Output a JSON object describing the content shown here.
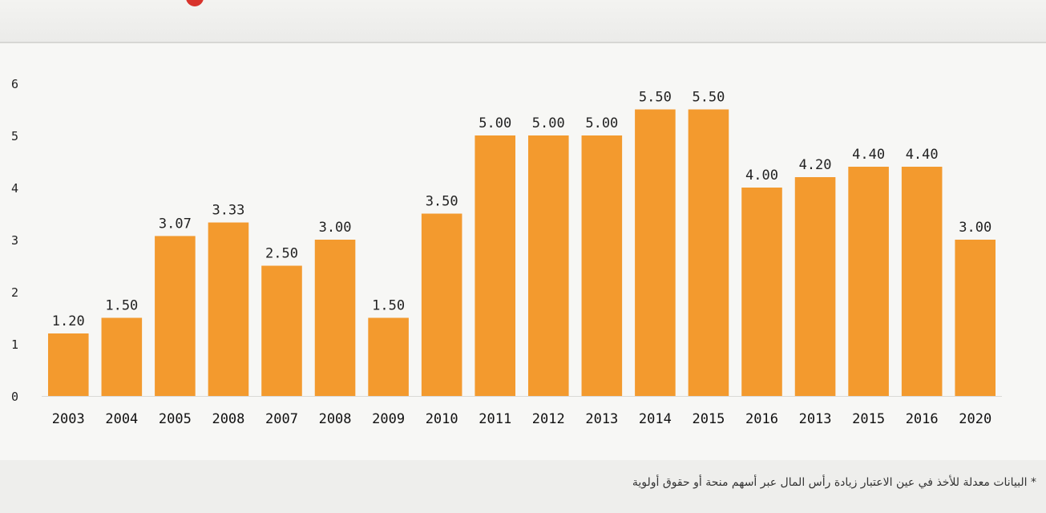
{
  "chart_data": {
    "type": "bar",
    "categories": [
      "2003",
      "2004",
      "2005",
      "2008",
      "2007",
      "2008",
      "2009",
      "2010",
      "2011",
      "2012",
      "2013",
      "2014",
      "2015",
      "2016",
      "2013",
      "2015",
      "2016",
      "2020"
    ],
    "values": [
      1.2,
      1.5,
      3.07,
      3.33,
      2.5,
      3.0,
      1.5,
      3.5,
      5.0,
      5.0,
      5.0,
      5.5,
      5.5,
      4.0,
      4.2,
      4.4,
      4.4,
      3.0
    ],
    "value_labels": [
      "1.20",
      "1.50",
      "3.07",
      "3.33",
      "2.50",
      "3.00",
      "1.50",
      "3.50",
      "5.00",
      "5.00",
      "5.00",
      "5.50",
      "5.50",
      "4.00",
      "4.20",
      "4.40",
      "4.40",
      "3.00"
    ],
    "ylim": [
      0,
      6
    ],
    "yticks": [
      "0",
      "1",
      "2",
      "3",
      "4",
      "5",
      "6"
    ],
    "title": "",
    "xlabel": "",
    "ylabel": "",
    "grid": false,
    "legend": "none",
    "bar_color": "#f39a2e"
  },
  "footnote": "* البيانات معدلة للأخذ في عين الاعتبار زيادة رأس المال عبر أسهم منحة أو حقوق أولوية"
}
